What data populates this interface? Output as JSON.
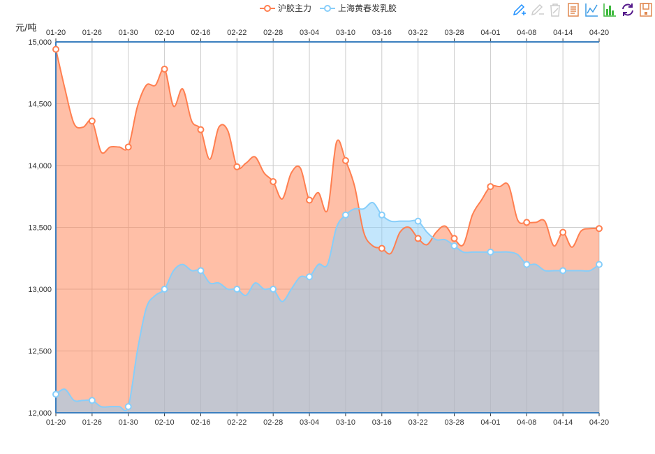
{
  "legend": [
    "沪胶主力",
    "上海黄春发乳胶"
  ],
  "toolbox": [
    {
      "name": "mark-icon",
      "color": "#1e90ff"
    },
    {
      "name": "mark-undo-icon",
      "color": "#cccccc"
    },
    {
      "name": "mark-clear-icon",
      "color": "#cccccc"
    },
    {
      "name": "data-view-icon",
      "color": "#e08850"
    },
    {
      "name": "line-chart-icon",
      "color": "#3c9ce6"
    },
    {
      "name": "bar-chart-icon",
      "color": "#3cb83c"
    },
    {
      "name": "restore-icon",
      "color": "#551a8b"
    },
    {
      "name": "save-image-icon",
      "color": "#e08850"
    }
  ],
  "chart_data": {
    "type": "area",
    "ylabel": "元/吨",
    "ylim": [
      12000,
      15000
    ],
    "yticks": [
      "12,000",
      "12,500",
      "13,000",
      "13,500",
      "14,000",
      "14,500",
      "15,000"
    ],
    "ytick_values": [
      12000,
      12500,
      13000,
      13500,
      14000,
      14500,
      15000
    ],
    "x_tick_labels": [
      "01-20",
      "01-26",
      "01-30",
      "02-10",
      "02-16",
      "02-22",
      "02-28",
      "03-04",
      "03-10",
      "03-16",
      "03-22",
      "03-28",
      "04-01",
      "04-08",
      "04-14",
      "04-20"
    ],
    "label_every": 4,
    "grid": true,
    "legend_position": "top-center",
    "series": [
      {
        "name": "沪胶主力",
        "color": "#ff7f50",
        "values": [
          14940,
          14620,
          14340,
          14310,
          14360,
          14110,
          14150,
          14150,
          14150,
          14475,
          14650,
          14650,
          14780,
          14480,
          14620,
          14360,
          14290,
          14050,
          14310,
          14280,
          13990,
          14020,
          14070,
          13940,
          13870,
          13730,
          13940,
          13980,
          13720,
          13780,
          13640,
          14190,
          14040,
          13830,
          13460,
          13350,
          13330,
          13290,
          13460,
          13500,
          13410,
          13360,
          13460,
          13510,
          13410,
          13360,
          13600,
          13720,
          13830,
          13830,
          13840,
          13560,
          13540,
          13540,
          13550,
          13350,
          13460,
          13340,
          13470,
          13490,
          13490
        ]
      },
      {
        "name": "上海黄春发乳胶",
        "color": "#87cefa",
        "values": [
          12150,
          12190,
          12100,
          12100,
          12100,
          12050,
          12050,
          12050,
          12050,
          12500,
          12850,
          12950,
          13000,
          13150,
          13200,
          13150,
          13150,
          13050,
          13050,
          13000,
          13000,
          12950,
          13050,
          13000,
          13000,
          12900,
          13000,
          13100,
          13100,
          13200,
          13200,
          13500,
          13600,
          13650,
          13650,
          13700,
          13600,
          13550,
          13550,
          13550,
          13550,
          13460,
          13400,
          13400,
          13350,
          13300,
          13300,
          13300,
          13300,
          13300,
          13300,
          13280,
          13200,
          13200,
          13150,
          13150,
          13150,
          13150,
          13150,
          13150,
          13200
        ]
      }
    ]
  }
}
